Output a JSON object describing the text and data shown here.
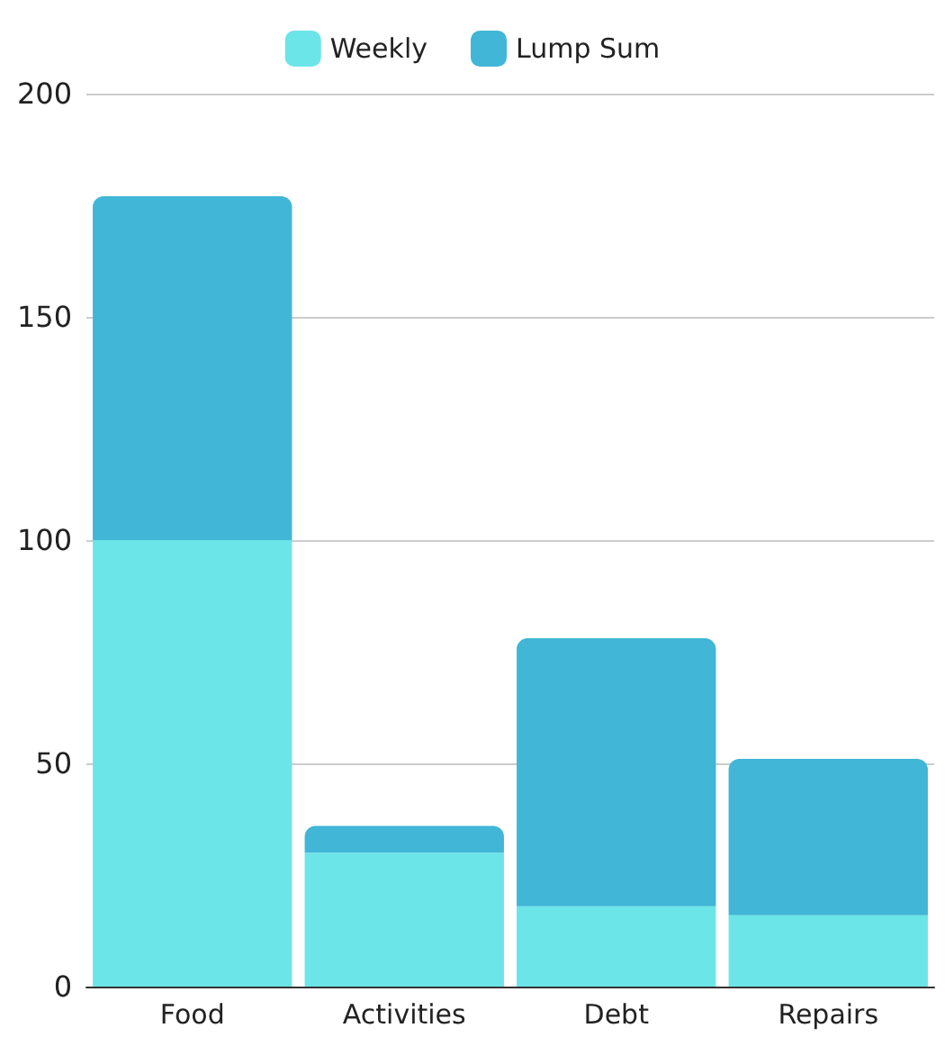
{
  "chart_data": {
    "type": "bar",
    "stacked": true,
    "categories": [
      "Food",
      "Activities",
      "Debt",
      "Repairs"
    ],
    "series": [
      {
        "name": "Weekly",
        "color": "#6ce5e8",
        "values": [
          100,
          30,
          18,
          16
        ]
      },
      {
        "name": "Lump Sum",
        "color": "#41b6d6",
        "values": [
          77,
          6,
          60,
          35
        ]
      }
    ],
    "ylim": [
      0,
      200
    ],
    "yticks": [
      0,
      50,
      100,
      150,
      200
    ],
    "grid": "y",
    "legend": "top"
  }
}
